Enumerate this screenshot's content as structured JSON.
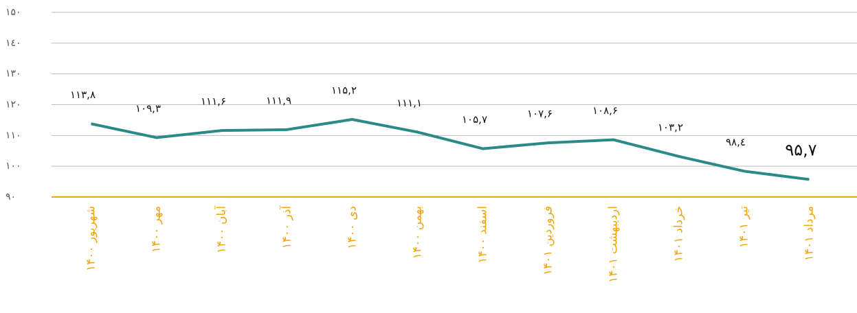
{
  "chart_data": {
    "type": "line",
    "categories": [
      "شهریور ۱۴۰۰",
      "مهر ۱۴۰۰",
      "آبان ۱۴۰۰",
      "آذر ۱۴۰۰",
      "دی ۱۴۰۰",
      "بهمن ۱۴۰۰",
      "اسفند ۱۴۰۰",
      "فروردین ۱۴۰۱",
      "اردیبهشت ۱۴۰۱",
      "خرداد ۱۴۰۱",
      "تیر ۱۴۰۱",
      "مرداد ۱۴۰۱"
    ],
    "values": [
      113.8,
      109.3,
      111.6,
      111.9,
      115.2,
      111.1,
      105.7,
      107.6,
      108.6,
      103.2,
      98.4,
      95.7
    ],
    "value_labels": [
      "۱۱۳,۸",
      "۱۰۹,۳",
      "۱۱۱,۶",
      "۱۱۱,۹",
      "۱۱۵,۲",
      "۱۱۱,۱",
      "۱۰۵,۷",
      "۱۰۷,۶",
      "۱۰۸,۶",
      "۱۰۳,۲",
      "۹۸,٤",
      "۹۵,۷"
    ],
    "color": "#2a8a8a",
    "axis_color": "#f0a30a",
    "ylim": [
      90,
      150
    ],
    "yticks": [
      {
        "value": 90,
        "label": "۹۰"
      },
      {
        "value": 100,
        "label": "۱۰۰"
      },
      {
        "value": 110,
        "label": "۱۱۰"
      },
      {
        "value": 120,
        "label": "۱۲۰"
      },
      {
        "value": 130,
        "label": "۱۳۰"
      },
      {
        "value": 140,
        "label": "۱٤۰"
      },
      {
        "value": 150,
        "label": "۱۵۰"
      }
    ],
    "grid": true
  }
}
